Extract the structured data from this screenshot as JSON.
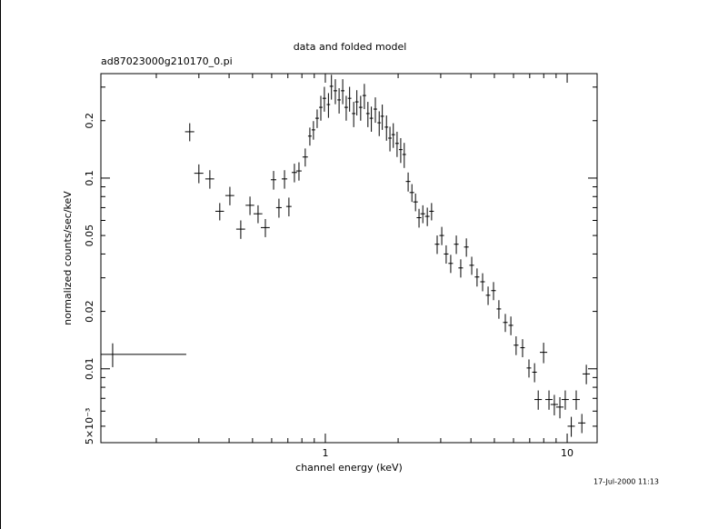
{
  "chart_data": {
    "type": "scatter",
    "title": "data and folded model",
    "subtitle": "ad87023000g210170_0.pi",
    "x_label": "channel energy (keV)",
    "y_label": "normalized counts/sec/keV",
    "annotation": "17-Jul-2000 11:13",
    "log_x": true,
    "log_y": true,
    "color": "#000000",
    "xlim": [
      0.118,
      13.3
    ],
    "ylim": [
      0.0041,
      0.353
    ],
    "xticks": [
      1,
      10
    ],
    "xticks_minor": [
      0.2,
      0.3,
      0.4,
      0.5,
      0.6,
      0.7,
      0.8,
      0.9,
      2,
      3,
      4,
      5,
      6,
      7,
      8,
      9
    ],
    "yticks": [
      {
        "value": 0.005,
        "label": "5×10⁻³"
      },
      0.01,
      0.02,
      0.05,
      0.1,
      0.2
    ],
    "yticks_minor": [
      0.006,
      0.007,
      0.008,
      0.009,
      0.03,
      0.04,
      0.06,
      0.07,
      0.08,
      0.09,
      0.3
    ],
    "x": [
      0.132,
      0.275,
      0.3,
      0.333,
      0.366,
      0.403,
      0.447,
      0.488,
      0.527,
      0.565,
      0.611,
      0.643,
      0.678,
      0.707,
      0.745,
      0.778,
      0.826,
      0.863,
      0.893,
      0.925,
      0.958,
      0.991,
      1.03,
      1.06,
      1.1,
      1.14,
      1.18,
      1.22,
      1.26,
      1.31,
      1.35,
      1.4,
      1.45,
      1.5,
      1.55,
      1.61,
      1.67,
      1.72,
      1.79,
      1.85,
      1.91,
      1.98,
      2.05,
      2.12,
      2.2,
      2.28,
      2.36,
      2.44,
      2.53,
      2.64,
      2.75,
      2.9,
      3.03,
      3.16,
      3.3,
      3.48,
      3.63,
      3.83,
      4.03,
      4.24,
      4.47,
      4.71,
      4.96,
      5.22,
      5.55,
      5.85,
      6.15,
      6.54,
      6.95,
      7.33,
      7.59,
      7.99,
      8.41,
      8.85,
      9.33,
      9.82,
      10.4,
      10.9,
      11.5,
      12.0
    ],
    "values": [
      0.0119,
      0.175,
      0.106,
      0.099,
      0.067,
      0.081,
      0.054,
      0.072,
      0.065,
      0.055,
      0.098,
      0.07,
      0.099,
      0.071,
      0.107,
      0.109,
      0.129,
      0.166,
      0.179,
      0.206,
      0.235,
      0.262,
      0.243,
      0.303,
      0.287,
      0.257,
      0.287,
      0.235,
      0.262,
      0.218,
      0.251,
      0.235,
      0.271,
      0.218,
      0.206,
      0.23,
      0.195,
      0.211,
      0.185,
      0.162,
      0.169,
      0.152,
      0.141,
      0.133,
      0.096,
      0.084,
      0.075,
      0.062,
      0.065,
      0.063,
      0.067,
      0.045,
      0.05,
      0.04,
      0.0357,
      0.045,
      0.0338,
      0.0435,
      0.0349,
      0.0303,
      0.0286,
      0.0243,
      0.0257,
      0.0206,
      0.0175,
      0.0169,
      0.0133,
      0.0129,
      0.0101,
      0.0096,
      0.0069,
      0.0122,
      0.0069,
      0.0065,
      0.0063,
      0.0069,
      0.005,
      0.0069,
      0.0052,
      0.0094
    ],
    "xerr": [
      [
        0.014,
        0.134
      ],
      [
        0.012,
        0.012
      ],
      [
        0.013,
        0.013
      ],
      [
        0.014,
        0.014
      ],
      [
        0.015,
        0.015
      ],
      [
        0.017,
        0.017
      ],
      [
        0.019,
        0.019
      ],
      [
        0.02,
        0.02
      ],
      [
        0.022,
        0.022
      ],
      [
        0.024,
        0.024
      ],
      [
        0.016,
        0.016
      ],
      [
        0.017,
        0.017
      ],
      [
        0.018,
        0.018
      ],
      [
        0.018,
        0.018
      ],
      [
        0.019,
        0.019
      ],
      [
        0.02,
        0.02
      ],
      [
        0.021,
        0.021
      ],
      [
        0.015,
        0.015
      ],
      [
        0.015,
        0.015
      ],
      [
        0.016,
        0.016
      ],
      [
        0.016,
        0.016
      ],
      [
        0.017,
        0.017
      ],
      [
        0.017,
        0.017
      ],
      [
        0.018,
        0.018
      ],
      [
        0.019,
        0.019
      ],
      [
        0.019,
        0.019
      ],
      [
        0.02,
        0.02
      ],
      [
        0.021,
        0.021
      ],
      [
        0.021,
        0.021
      ],
      [
        0.022,
        0.022
      ],
      [
        0.023,
        0.023
      ],
      [
        0.024,
        0.024
      ],
      [
        0.025,
        0.025
      ],
      [
        0.025,
        0.025
      ],
      [
        0.026,
        0.026
      ],
      [
        0.027,
        0.027
      ],
      [
        0.028,
        0.028
      ],
      [
        0.029,
        0.029
      ],
      [
        0.03,
        0.03
      ],
      [
        0.031,
        0.031
      ],
      [
        0.032,
        0.032
      ],
      [
        0.034,
        0.034
      ],
      [
        0.035,
        0.035
      ],
      [
        0.036,
        0.036
      ],
      [
        0.048,
        0.048
      ],
      [
        0.05,
        0.05
      ],
      [
        0.052,
        0.052
      ],
      [
        0.054,
        0.054
      ],
      [
        0.056,
        0.056
      ],
      [
        0.058,
        0.058
      ],
      [
        0.06,
        0.06
      ],
      [
        0.064,
        0.064
      ],
      [
        0.067,
        0.067
      ],
      [
        0.07,
        0.07
      ],
      [
        0.073,
        0.073
      ],
      [
        0.077,
        0.077
      ],
      [
        0.08,
        0.08
      ],
      [
        0.084,
        0.084
      ],
      [
        0.089,
        0.089
      ],
      [
        0.093,
        0.093
      ],
      [
        0.098,
        0.098
      ],
      [
        0.1,
        0.1
      ],
      [
        0.11,
        0.11
      ],
      [
        0.11,
        0.11
      ],
      [
        0.12,
        0.12
      ],
      [
        0.13,
        0.13
      ],
      [
        0.14,
        0.14
      ],
      [
        0.14,
        0.14
      ],
      [
        0.15,
        0.15
      ],
      [
        0.16,
        0.16
      ],
      [
        0.27,
        0.27
      ],
      [
        0.28,
        0.28
      ],
      [
        0.29,
        0.29
      ],
      [
        0.31,
        0.31
      ],
      [
        0.33,
        0.33
      ],
      [
        0.34,
        0.34
      ],
      [
        0.36,
        0.36
      ],
      [
        0.38,
        0.38
      ],
      [
        0.4,
        0.4
      ],
      [
        0.42,
        0.42
      ]
    ],
    "yerr": [
      0.0017,
      0.019,
      0.012,
      0.011,
      0.007,
      0.009,
      0.006,
      0.008,
      0.007,
      0.006,
      0.011,
      0.008,
      0.011,
      0.008,
      0.012,
      0.012,
      0.014,
      0.018,
      0.02,
      0.023,
      0.035,
      0.039,
      0.036,
      0.045,
      0.043,
      0.039,
      0.043,
      0.035,
      0.039,
      0.033,
      0.038,
      0.035,
      0.041,
      0.033,
      0.031,
      0.035,
      0.029,
      0.032,
      0.028,
      0.024,
      0.025,
      0.023,
      0.021,
      0.02,
      0.011,
      0.009,
      0.008,
      0.007,
      0.007,
      0.007,
      0.007,
      0.005,
      0.0055,
      0.0044,
      0.0039,
      0.005,
      0.0037,
      0.0048,
      0.0038,
      0.0033,
      0.0031,
      0.0027,
      0.0028,
      0.0023,
      0.0019,
      0.0019,
      0.0015,
      0.0014,
      0.0011,
      0.0011,
      0.0008,
      0.0015,
      0.0008,
      0.0008,
      0.0008,
      0.0008,
      0.0006,
      0.0008,
      0.0006,
      0.0011
    ]
  }
}
